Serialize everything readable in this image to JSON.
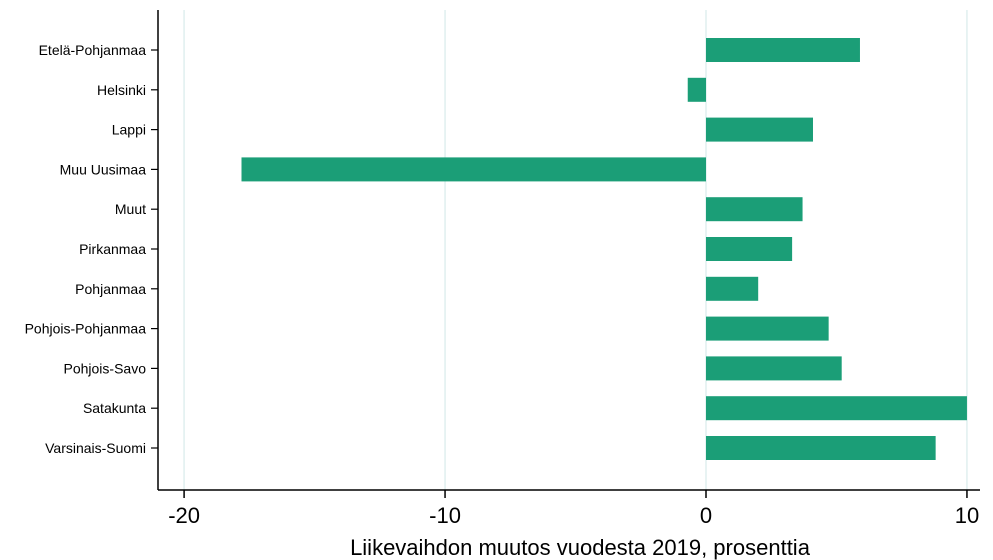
{
  "chart_data": {
    "type": "bar",
    "orientation": "horizontal",
    "categories": [
      "Etelä-Pohjanmaa",
      "Helsinki",
      "Lappi",
      "Muu Uusimaa",
      "Muut",
      "Pirkanmaa",
      "Pohjanmaa",
      "Pohjois-Pohjanmaa",
      "Pohjois-Savo",
      "Satakunta",
      "Varsinais-Suomi"
    ],
    "values": [
      5.9,
      -0.7,
      4.1,
      -17.8,
      3.7,
      3.3,
      2.0,
      4.7,
      5.2,
      10.0,
      8.8
    ],
    "xlabel": "Liikevaihdon muutos vuodesta 2019, prosenttia",
    "xlim": [
      -21,
      10.5
    ],
    "xticks": [
      -20,
      -10,
      0,
      10
    ],
    "xtick_labels": [
      "-20",
      "-10",
      "0",
      "10"
    ],
    "grid": "vertical",
    "bar_color": "#1b9e77",
    "grid_color": "#e0efef"
  }
}
